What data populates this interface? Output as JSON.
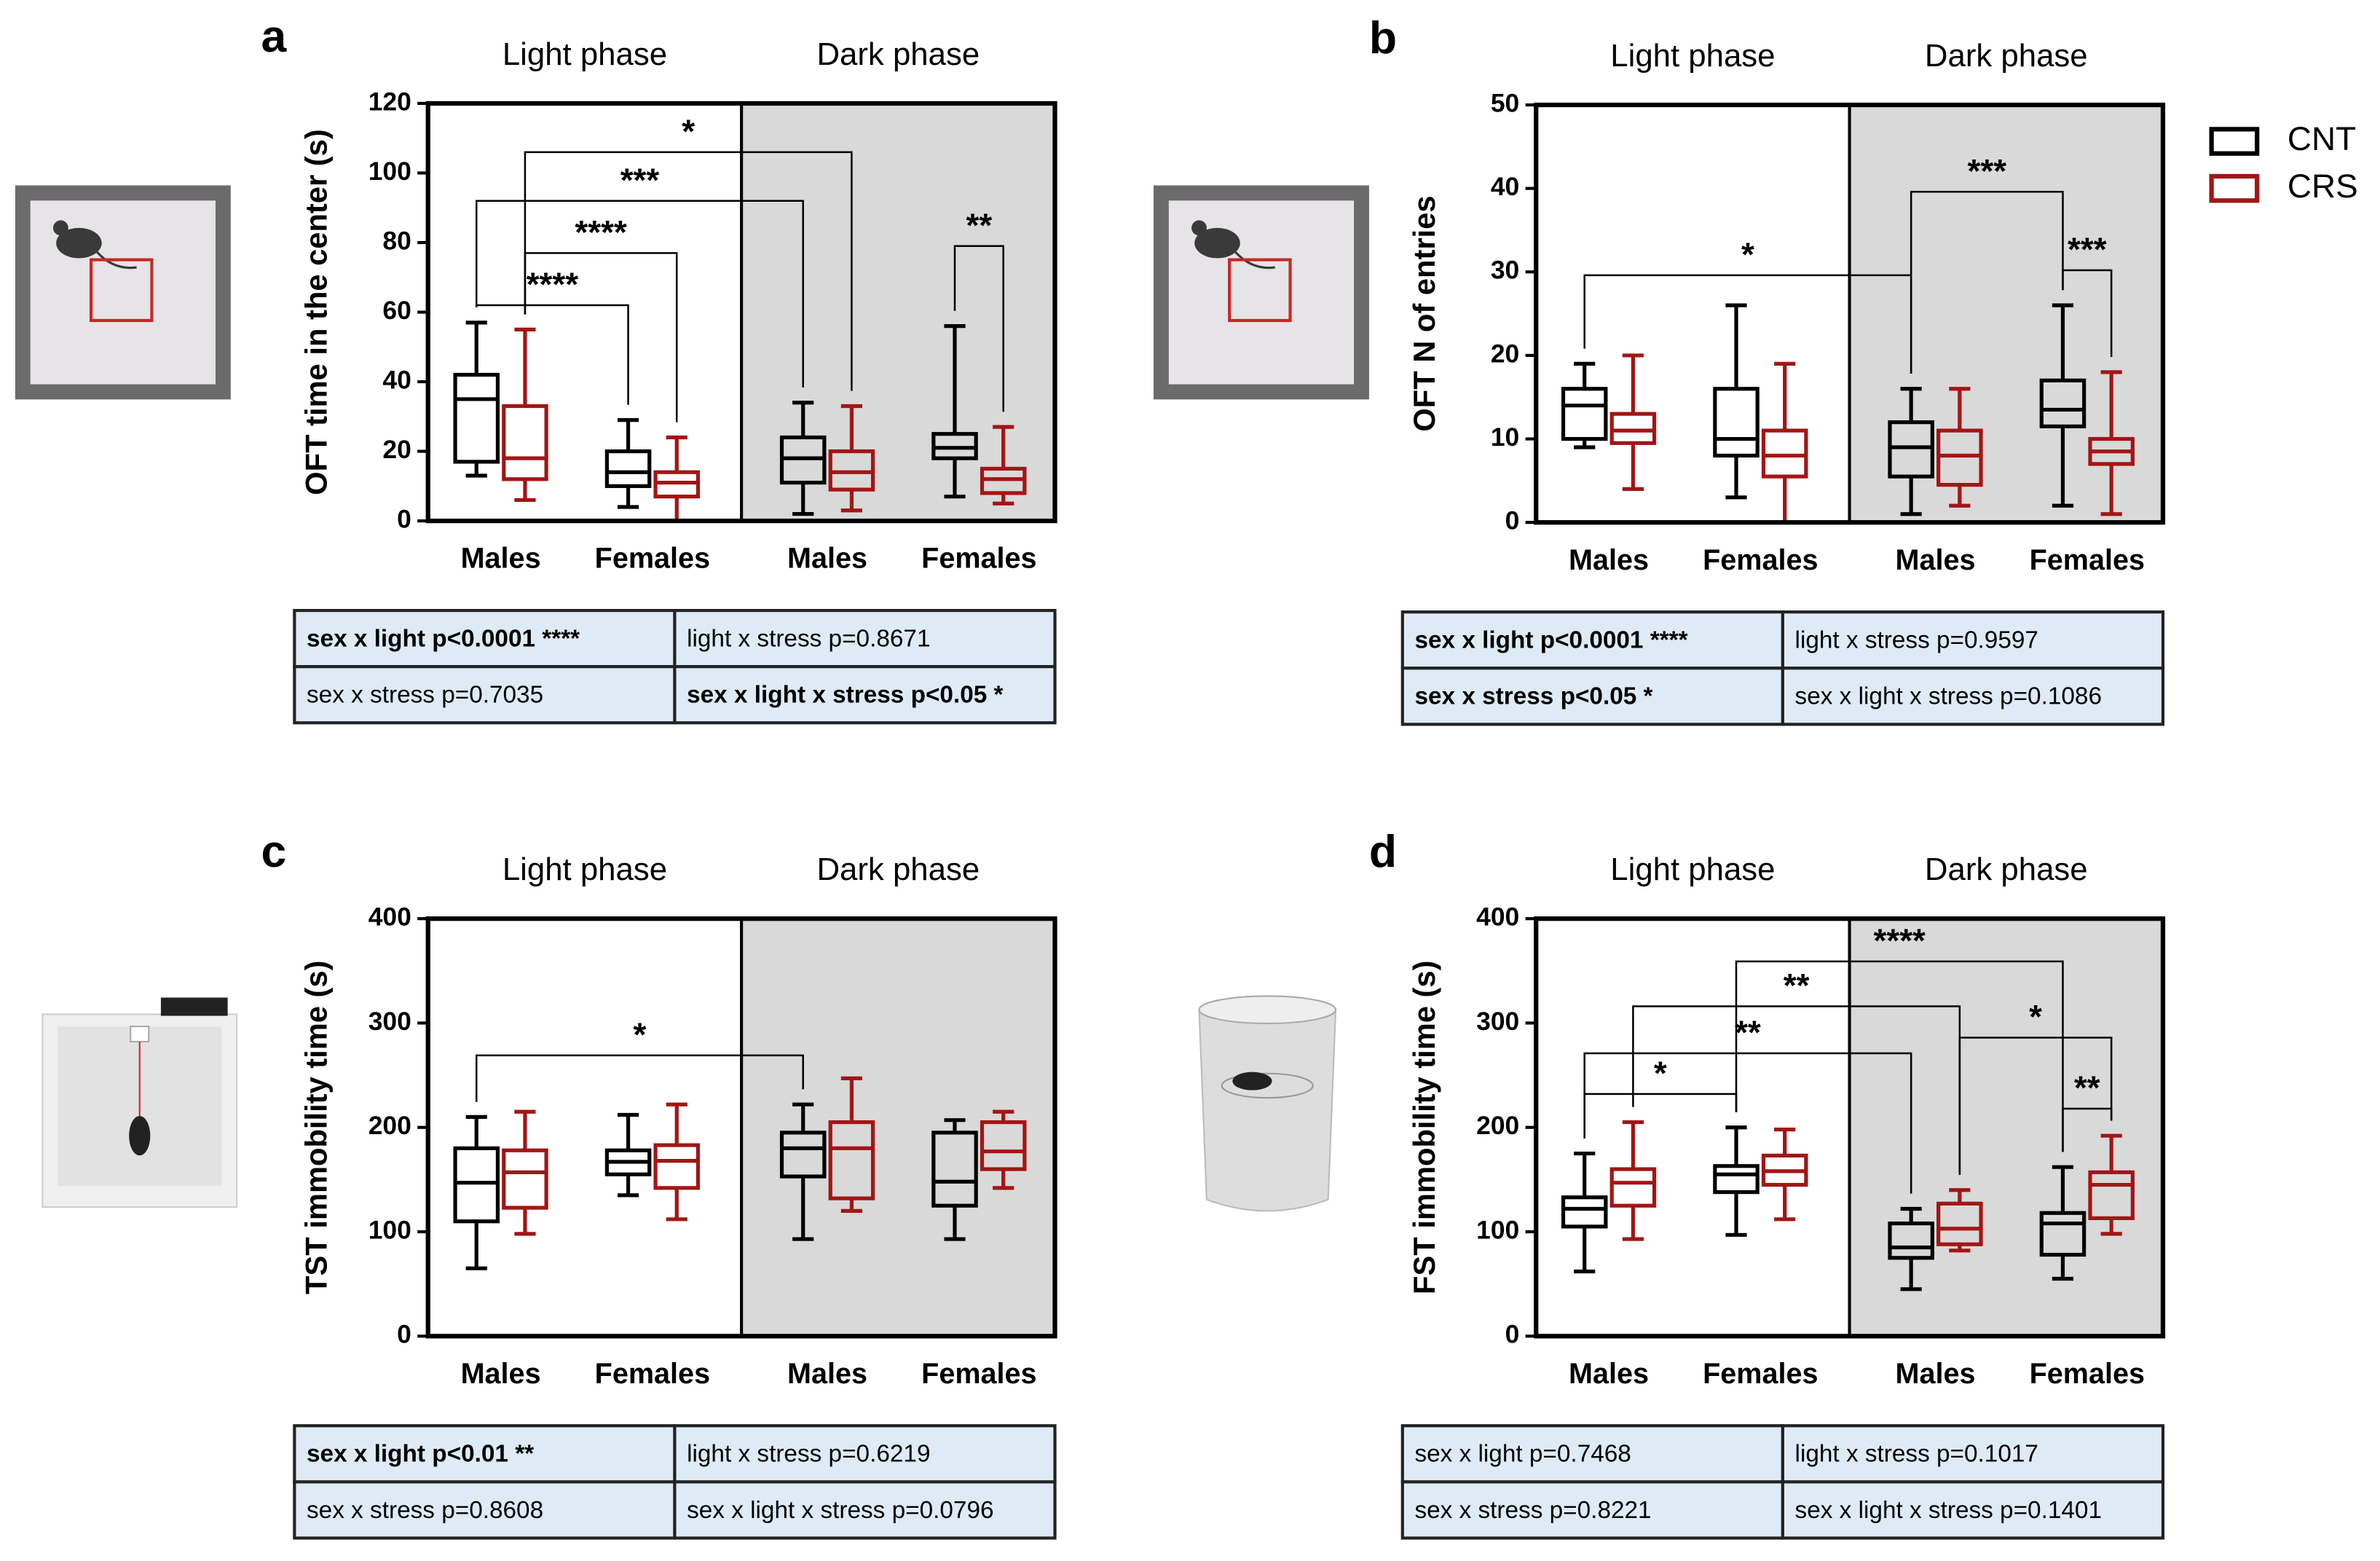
{
  "chart_data": [
    {
      "type": "box",
      "label": "a",
      "phases": [
        "Light phase",
        "Dark phase"
      ],
      "ylabel": "OFT time in the center (s)",
      "categories": [
        "Males",
        "Females",
        "Males",
        "Females"
      ],
      "ylim": [
        0,
        120
      ],
      "yticks": [
        0,
        20,
        40,
        60,
        80,
        100,
        120
      ],
      "shade_phase": 1,
      "series": [
        {
          "color": "#000000",
          "values": [
            {
              "min": 13,
              "q1": 17,
              "median": 35,
              "q3": 42,
              "max": 57
            },
            {
              "min": 4,
              "q1": 10,
              "median": 14,
              "q3": 20,
              "max": 29
            },
            {
              "min": 2,
              "q1": 11,
              "median": 18,
              "q3": 24,
              "max": 34
            },
            {
              "min": 7,
              "q1": 18,
              "median": 21,
              "q3": 25,
              "max": 56
            }
          ]
        },
        {
          "color": "#a31515",
          "values": [
            {
              "min": 6,
              "q1": 12,
              "median": 18,
              "q3": 33,
              "max": 55
            },
            {
              "min": 0,
              "q1": 7,
              "median": 11,
              "q3": 14,
              "max": 24
            },
            {
              "min": 3,
              "q1": 9,
              "median": 14,
              "q3": 20,
              "max": 33
            },
            {
              "min": 5,
              "q1": 8,
              "median": 12,
              "q3": 15,
              "max": 27
            }
          ]
        }
      ],
      "brackets": [
        {
          "label": "*",
          "from": [
            0,
            1
          ],
          "to": [
            2,
            1
          ],
          "y": 106
        },
        {
          "label": "***",
          "from": [
            0,
            0
          ],
          "to": [
            2,
            0
          ],
          "y": 92
        },
        {
          "label": "****",
          "from": [
            0,
            1
          ],
          "to": [
            1,
            1
          ],
          "y": 77
        },
        {
          "label": "****",
          "from": [
            0,
            0
          ],
          "to": [
            1,
            0
          ],
          "y": 62
        },
        {
          "label": "**",
          "from": [
            3,
            0
          ],
          "to": [
            3,
            1
          ],
          "y": 79
        }
      ],
      "table": {
        "rows": [
          [
            "sex x light p<0.0001 ****",
            "light x stress p=0.8671"
          ],
          [
            "sex x stress p=0.7035",
            "sex x light x stress p<0.05 *"
          ]
        ],
        "bold": [
          [
            0,
            0
          ],
          [
            1,
            1
          ]
        ]
      }
    },
    {
      "type": "box",
      "label": "b",
      "phases": [
        "Light phase",
        "Dark phase"
      ],
      "ylabel": "OFT N of entries",
      "categories": [
        "Males",
        "Females",
        "Males",
        "Females"
      ],
      "ylim": [
        0,
        50
      ],
      "yticks": [
        0,
        10,
        20,
        30,
        40,
        50
      ],
      "shade_phase": 1,
      "series": [
        {
          "name": "CNT",
          "color": "#000000",
          "values": [
            {
              "min": 9,
              "q1": 10,
              "median": 14,
              "q3": 16,
              "max": 19
            },
            {
              "min": 3,
              "q1": 8,
              "median": 10,
              "q3": 16,
              "max": 26
            },
            {
              "min": 1,
              "q1": 5.5,
              "median": 9,
              "q3": 12,
              "max": 16
            },
            {
              "min": 2,
              "q1": 11.5,
              "median": 13.5,
              "q3": 17,
              "max": 26
            }
          ]
        },
        {
          "name": "CRS",
          "color": "#a31515",
          "values": [
            {
              "min": 4,
              "q1": 9.5,
              "median": 11,
              "q3": 13,
              "max": 20
            },
            {
              "min": 0,
              "q1": 5.5,
              "median": 8,
              "q3": 11,
              "max": 19
            },
            {
              "min": 2,
              "q1": 4.5,
              "median": 8,
              "q3": 11,
              "max": 16
            },
            {
              "min": 1,
              "q1": 7,
              "median": 8.5,
              "q3": 10,
              "max": 18
            }
          ]
        }
      ],
      "brackets": [
        {
          "label": "*",
          "from": [
            0,
            0
          ],
          "to": [
            2,
            0
          ],
          "y": 29.6
        },
        {
          "label": "***",
          "from": [
            2,
            0
          ],
          "to": [
            3,
            0
          ],
          "y": 39.6
        },
        {
          "label": "***",
          "from": [
            3,
            0
          ],
          "to": [
            3,
            1
          ],
          "y": 30.2
        }
      ],
      "table": {
        "rows": [
          [
            "sex x light p<0.0001 ****",
            "light x stress p=0.9597"
          ],
          [
            "sex x stress p<0.05 *",
            "sex x light x stress p=0.1086"
          ]
        ],
        "bold": [
          [
            0,
            0
          ],
          [
            1,
            0
          ]
        ]
      }
    },
    {
      "type": "box",
      "label": "c",
      "phases": [
        "Light phase",
        "Dark phase"
      ],
      "ylabel": "TST immobility time (s)",
      "categories": [
        "Males",
        "Females",
        "Males",
        "Females"
      ],
      "ylim": [
        0,
        400
      ],
      "yticks": [
        0,
        100,
        200,
        300,
        400
      ],
      "shade_phase": 1,
      "series": [
        {
          "color": "#000000",
          "values": [
            {
              "min": 65,
              "q1": 110,
              "median": 147,
              "q3": 180,
              "max": 210
            },
            {
              "min": 135,
              "q1": 155,
              "median": 167,
              "q3": 178,
              "max": 212
            },
            {
              "min": 93,
              "q1": 153,
              "median": 180,
              "q3": 195,
              "max": 222
            },
            {
              "min": 93,
              "q1": 125,
              "median": 148,
              "q3": 195,
              "max": 207
            }
          ]
        },
        {
          "color": "#a31515",
          "values": [
            {
              "min": 98,
              "q1": 123,
              "median": 157,
              "q3": 178,
              "max": 215
            },
            {
              "min": 112,
              "q1": 142,
              "median": 168,
              "q3": 183,
              "max": 222
            },
            {
              "min": 120,
              "q1": 132,
              "median": 180,
              "q3": 205,
              "max": 247
            },
            {
              "min": 142,
              "q1": 160,
              "median": 177,
              "q3": 205,
              "max": 215
            }
          ]
        }
      ],
      "brackets": [
        {
          "label": "*",
          "from": [
            0,
            0
          ],
          "to": [
            2,
            0
          ],
          "y": 269
        }
      ],
      "table": {
        "rows": [
          [
            "sex x light p<0.01 **",
            "light x stress p=0.6219"
          ],
          [
            "sex x stress p=0.8608",
            "sex x light x stress p=0.0796"
          ]
        ],
        "bold": [
          [
            0,
            0
          ]
        ]
      }
    },
    {
      "type": "box",
      "label": "d",
      "phases": [
        "Light phase",
        "Dark phase"
      ],
      "ylabel": "FST immobility time (s)",
      "categories": [
        "Males",
        "Females",
        "Males",
        "Females"
      ],
      "ylim": [
        0,
        400
      ],
      "yticks": [
        0,
        100,
        200,
        300,
        400
      ],
      "shade_phase": 1,
      "series": [
        {
          "color": "#000000",
          "values": [
            {
              "min": 62,
              "q1": 105,
              "median": 122,
              "q3": 133,
              "max": 175
            },
            {
              "min": 97,
              "q1": 138,
              "median": 155,
              "q3": 163,
              "max": 200
            },
            {
              "min": 45,
              "q1": 75,
              "median": 85,
              "q3": 108,
              "max": 122
            },
            {
              "min": 55,
              "q1": 78,
              "median": 108,
              "q3": 118,
              "max": 162
            }
          ]
        },
        {
          "color": "#a31515",
          "values": [
            {
              "min": 93,
              "q1": 125,
              "median": 147,
              "q3": 160,
              "max": 205
            },
            {
              "min": 112,
              "q1": 145,
              "median": 158,
              "q3": 173,
              "max": 198
            },
            {
              "min": 82,
              "q1": 88,
              "median": 103,
              "q3": 127,
              "max": 140
            },
            {
              "min": 98,
              "q1": 113,
              "median": 145,
              "q3": 157,
              "max": 192
            }
          ]
        }
      ],
      "brackets": [
        {
          "label": "****",
          "from": [
            1,
            0
          ],
          "to": [
            3,
            0
          ],
          "y": 359
        },
        {
          "label": "**",
          "from": [
            0,
            1
          ],
          "to": [
            2,
            1
          ],
          "y": 316
        },
        {
          "label": "**",
          "from": [
            0,
            0
          ],
          "to": [
            2,
            0
          ],
          "y": 271
        },
        {
          "label": "*",
          "from": [
            0,
            0
          ],
          "to": [
            1,
            0
          ],
          "y": 232
        },
        {
          "label": "*",
          "from": [
            2,
            1
          ],
          "to": [
            3,
            1
          ],
          "y": 286
        },
        {
          "label": "**",
          "from": [
            3,
            0
          ],
          "to": [
            3,
            1
          ],
          "y": 218
        }
      ],
      "table": {
        "rows": [
          [
            "sex x light p=0.7468",
            "light x stress p=0.1017"
          ],
          [
            "sex x stress p=0.8221",
            "sex x light x stress p=0.1401"
          ]
        ],
        "bold": []
      }
    }
  ]
}
